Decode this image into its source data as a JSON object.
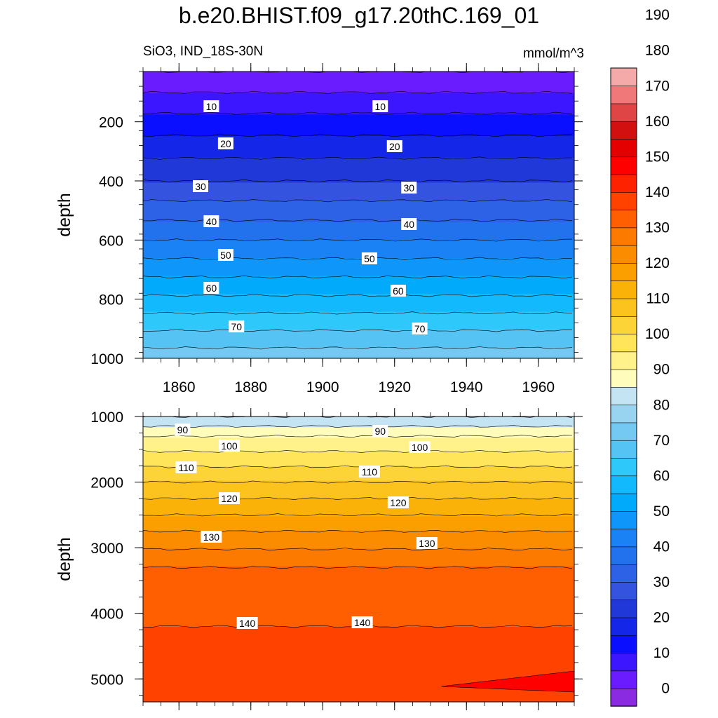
{
  "chart_data": {
    "type": "heatmap",
    "title": "b.e20.BHIST.f09_g17.20thC.169_01",
    "subtitle_left": "SiO3, IND_18S-30N",
    "subtitle_right": "mmol/m^3",
    "xlabel": "",
    "ylabel": "depth",
    "x_range": [
      1850,
      1970
    ],
    "x_ticks": [
      1860,
      1880,
      1900,
      1920,
      1940,
      1960
    ],
    "colorbar": {
      "levels": [
        0,
        10,
        20,
        30,
        40,
        50,
        60,
        70,
        80,
        90,
        100,
        110,
        120,
        130,
        140,
        150,
        160,
        170,
        180,
        190
      ],
      "tick_labels": [
        "0",
        "10",
        "20",
        "30",
        "40",
        "50",
        "60",
        "70",
        "80",
        "90",
        "100",
        "110",
        "120",
        "130",
        "140",
        "150",
        "160",
        "170",
        "180",
        "190"
      ],
      "colors": [
        "#8a2be2",
        "#6a1cff",
        "#3c16ff",
        "#0a10ff",
        "#1426e8",
        "#2138d8",
        "#3454e0",
        "#2e62e6",
        "#2272ee",
        "#1a82f4",
        "#0e96fa",
        "#02aafc",
        "#12bafd",
        "#2ec8fb",
        "#55c3f3",
        "#74c9f2",
        "#98d3ef",
        "#c4e4f3",
        "#fffcbc",
        "#fff28a",
        "#fee55a",
        "#fdd438",
        "#fcc31e",
        "#fbb208",
        "#fb9f00",
        "#fb8c00",
        "#fd7a00",
        "#ff5f00",
        "#ff4200",
        "#ff2200",
        "#ff0000",
        "#e40000",
        "#d21010",
        "#e04545",
        "#f07878",
        "#f5aaaa"
      ]
    },
    "panels": [
      {
        "name": "upper",
        "ylim": [
          1000,
          30
        ],
        "y_ticks": [
          200,
          400,
          600,
          800,
          1000
        ],
        "contour_labels": [
          "10",
          "20",
          "30",
          "40",
          "50",
          "60",
          "70"
        ],
        "contours_by_depth": [
          {
            "depth": 30,
            "value": 5
          },
          {
            "depth": 200,
            "value": 17
          },
          {
            "depth": 400,
            "value": 30
          },
          {
            "depth": 600,
            "value": 45
          },
          {
            "depth": 800,
            "value": 61
          },
          {
            "depth": 1000,
            "value": 78
          }
        ]
      },
      {
        "name": "lower",
        "ylim": [
          5350,
          1000
        ],
        "y_ticks": [
          1000,
          2000,
          3000,
          4000,
          5000
        ],
        "contour_labels": [
          "90",
          "100",
          "110",
          "120",
          "130",
          "140"
        ],
        "contours_by_depth": [
          {
            "depth": 1000,
            "value": 85
          },
          {
            "depth": 1300,
            "value": 95
          },
          {
            "depth": 2000,
            "value": 110
          },
          {
            "depth": 2800,
            "value": 126
          },
          {
            "depth": 3300,
            "value": 135
          },
          {
            "depth": 4200,
            "value": 140
          },
          {
            "depth": 5350,
            "value": 143
          }
        ],
        "note": "small region exceeding 150 near bottom right after ~1935"
      }
    ]
  }
}
